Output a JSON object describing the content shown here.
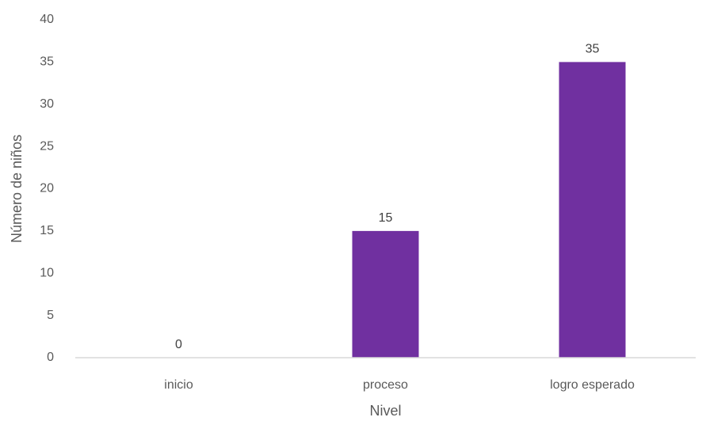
{
  "chart_data": {
    "type": "bar",
    "categories": [
      "inicio",
      "proceso",
      "logro esperado"
    ],
    "values": [
      0,
      15,
      35
    ],
    "data_labels": [
      "0",
      "15",
      "35"
    ],
    "xlabel": "Nivel",
    "ylabel": "Número de niños",
    "ylim": [
      0,
      40
    ],
    "yticks": [
      0,
      5,
      10,
      15,
      20,
      25,
      30,
      35,
      40
    ],
    "grid": false,
    "legend": "none",
    "colors": {
      "bar": "#7030A0",
      "axis_line": "#D9D9D9",
      "tick_text": "#595959",
      "label_text": "#404040"
    }
  }
}
